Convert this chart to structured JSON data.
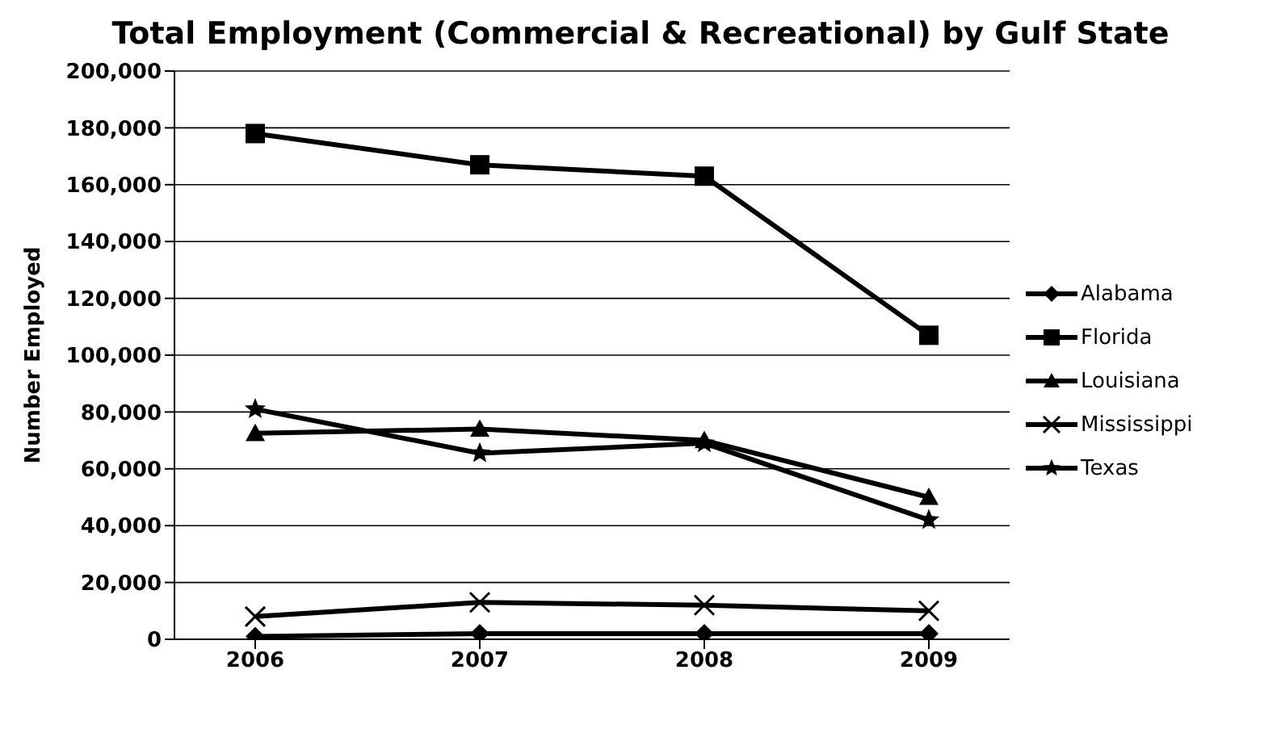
{
  "chart_data": {
    "type": "line",
    "title": "Total Employment (Commercial & Recreational) by Gulf State",
    "ylabel": "Number Employed",
    "categories": [
      "2006",
      "2007",
      "2008",
      "2009"
    ],
    "series": [
      {
        "name": "Alabama",
        "color": "#000000",
        "marker": "diamond",
        "values": [
          1000,
          2000,
          2000,
          2000
        ]
      },
      {
        "name": "Florida",
        "color": "#000000",
        "marker": "square",
        "values": [
          178000,
          167000,
          163000,
          107000
        ]
      },
      {
        "name": "Louisiana",
        "color": "#000000",
        "marker": "triangle",
        "values": [
          72500,
          74000,
          70000,
          50000
        ]
      },
      {
        "name": "Mississippi",
        "color": "#000000",
        "marker": "cross",
        "values": [
          8000,
          13000,
          12000,
          10000
        ]
      },
      {
        "name": "Texas",
        "color": "#000000",
        "marker": "star",
        "values": [
          81000,
          65500,
          69000,
          42000
        ]
      }
    ],
    "ylim": [
      0,
      200000
    ],
    "yticks": [
      0,
      {
        "value": 20000,
        "label": "20,000"
      },
      {
        "value": 40000,
        "label": "40,000"
      },
      {
        "value": 60000,
        "label": "60,000"
      },
      {
        "value": 80000,
        "label": "80,000"
      },
      {
        "value": 100000,
        "label": "100,000"
      },
      {
        "value": 120000,
        "label": "120,000"
      },
      {
        "value": 140000,
        "label": "140,000"
      },
      {
        "value": 160000,
        "label": "160,000"
      },
      {
        "value": 180000,
        "label": "180,000"
      },
      {
        "value": 200000,
        "label": "200,000"
      }
    ],
    "grid": "y",
    "legend": "right",
    "line_style": "solid"
  }
}
